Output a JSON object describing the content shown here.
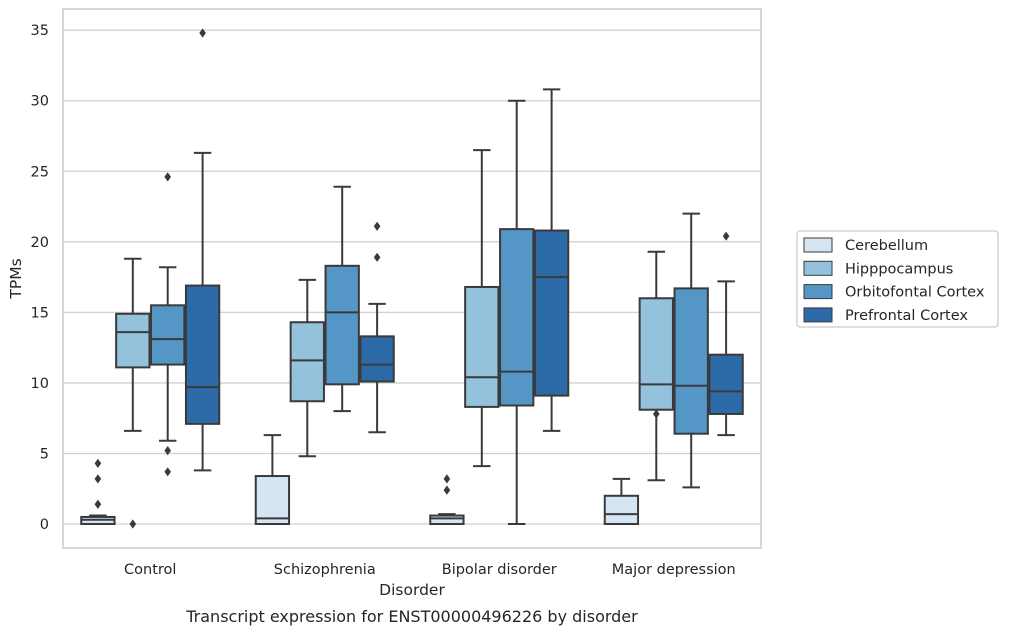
{
  "caption": "Transcript expression for ENST00000496226 by disorder",
  "colors": {
    "Cerebellum": "#d6e5f3",
    "Hipppocampus": "#94c1dc",
    "Orbitofontal Cortex": "#5497c6",
    "Prefrontal Cortex": "#2d6aa8",
    "box_edge": "#3a3a3a",
    "grid": "#d0d0d0",
    "frame": "#cccccc"
  },
  "chart_data": {
    "type": "boxplot",
    "xlabel": "Disorder",
    "ylabel": "TPMs",
    "ylim": [
      -1.7,
      36.5
    ],
    "yticks": [
      0,
      5,
      10,
      15,
      20,
      25,
      30,
      35
    ],
    "grid": "horizontal",
    "legend_position": "right",
    "categories": [
      "Control",
      "Schizophrenia",
      "Bipolar disorder",
      "Major depression"
    ],
    "series": [
      {
        "name": "Cerebellum",
        "boxes": [
          {
            "whislo": 0.0,
            "q1": 0.0,
            "med": 0.3,
            "q3": 0.5,
            "whishi": 0.6,
            "fliers": [
              4.3,
              3.2,
              1.4
            ]
          },
          {
            "whislo": 0.0,
            "q1": 0.0,
            "med": 0.4,
            "q3": 3.4,
            "whishi": 6.3,
            "fliers": []
          },
          {
            "whislo": 0.0,
            "q1": 0.0,
            "med": 0.4,
            "q3": 0.6,
            "whishi": 0.7,
            "fliers": [
              3.2,
              2.4
            ]
          },
          {
            "whislo": 0.0,
            "q1": 0.0,
            "med": 0.7,
            "q3": 2.0,
            "whishi": 3.2,
            "fliers": []
          }
        ]
      },
      {
        "name": "Hipppocampus",
        "boxes": [
          {
            "whislo": 6.6,
            "q1": 11.1,
            "med": 13.6,
            "q3": 14.9,
            "whishi": 18.8,
            "fliers": [
              0.0
            ]
          },
          {
            "whislo": 4.8,
            "q1": 8.7,
            "med": 11.6,
            "q3": 14.3,
            "whishi": 17.3,
            "fliers": []
          },
          {
            "whislo": 4.1,
            "q1": 8.3,
            "med": 10.4,
            "q3": 16.8,
            "whishi": 26.5,
            "fliers": []
          },
          {
            "whislo": 3.1,
            "q1": 8.1,
            "med": 9.9,
            "q3": 16.0,
            "whishi": 19.3,
            "fliers": [
              7.8
            ]
          }
        ]
      },
      {
        "name": "Orbitofontal Cortex",
        "boxes": [
          {
            "whislo": 5.9,
            "q1": 11.3,
            "med": 13.1,
            "q3": 15.5,
            "whishi": 18.2,
            "fliers": [
              24.6,
              5.2,
              3.7
            ]
          },
          {
            "whislo": 8.0,
            "q1": 9.9,
            "med": 15.0,
            "q3": 18.3,
            "whishi": 23.9,
            "fliers": []
          },
          {
            "whislo": 0.0,
            "q1": 8.4,
            "med": 10.8,
            "q3": 20.9,
            "whishi": 30.0,
            "fliers": []
          },
          {
            "whislo": 2.6,
            "q1": 6.4,
            "med": 9.8,
            "q3": 16.7,
            "whishi": 22.0,
            "fliers": []
          }
        ]
      },
      {
        "name": "Prefrontal Cortex",
        "boxes": [
          {
            "whislo": 3.8,
            "q1": 7.1,
            "med": 9.7,
            "q3": 16.9,
            "whishi": 26.3,
            "fliers": [
              34.8
            ]
          },
          {
            "whislo": 6.5,
            "q1": 10.1,
            "med": 11.3,
            "q3": 13.3,
            "whishi": 15.6,
            "fliers": [
              21.1,
              18.9
            ]
          },
          {
            "whislo": 6.6,
            "q1": 9.1,
            "med": 17.5,
            "q3": 20.8,
            "whishi": 30.8,
            "fliers": []
          },
          {
            "whislo": 6.3,
            "q1": 7.8,
            "med": 9.4,
            "q3": 12.0,
            "whishi": 17.2,
            "fliers": [
              20.4
            ]
          }
        ]
      }
    ]
  }
}
